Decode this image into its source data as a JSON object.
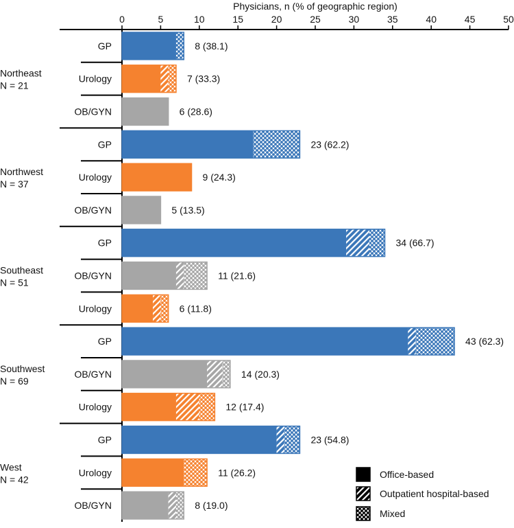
{
  "chart_data": {
    "type": "bar",
    "orientation": "horizontal-stacked",
    "title": "Physicians, n (% of geographic region)",
    "xlim": [
      0,
      50
    ],
    "xticks": [
      0,
      5,
      10,
      15,
      20,
      25,
      30,
      35,
      40,
      45,
      50
    ],
    "segments": [
      "Office-based",
      "Outpatient hospital-based",
      "Mixed"
    ],
    "colors": {
      "GP": "#3b77b9",
      "Urology": "#f5822f",
      "OB/GYN": "#a6a6a6",
      "legend": "#000000"
    },
    "groups": [
      {
        "name": "Northeast",
        "n_label": "N = 21",
        "bars": [
          {
            "category": "GP",
            "values": [
              7,
              0,
              1
            ],
            "label": "8 (38.1)"
          },
          {
            "category": "Urology",
            "values": [
              5,
              1,
              1
            ],
            "label": "7 (33.3)"
          },
          {
            "category": "OB/GYN",
            "values": [
              6,
              0,
              0
            ],
            "label": "6 (28.6)"
          }
        ]
      },
      {
        "name": "Northwest",
        "n_label": "N = 37",
        "bars": [
          {
            "category": "GP",
            "values": [
              17,
              0,
              6
            ],
            "label": "23 (62.2)"
          },
          {
            "category": "Urology",
            "values": [
              9,
              0,
              0
            ],
            "label": "9 (24.3)"
          },
          {
            "category": "OB/GYN",
            "values": [
              5,
              0,
              0
            ],
            "label": "5 (13.5)"
          }
        ]
      },
      {
        "name": "Southeast",
        "n_label": "N = 51",
        "bars": [
          {
            "category": "GP",
            "values": [
              29,
              3,
              2
            ],
            "label": "34 (66.7)"
          },
          {
            "category": "OB/GYN",
            "values": [
              7,
              1,
              3
            ],
            "label": "11 (21.6)"
          },
          {
            "category": "Urology",
            "values": [
              4,
              1,
              1
            ],
            "label": "6 (11.8)"
          }
        ]
      },
      {
        "name": "Southwest",
        "n_label": "N = 69",
        "bars": [
          {
            "category": "GP",
            "values": [
              37,
              1,
              5
            ],
            "label": "43 (62.3)"
          },
          {
            "category": "OB/GYN",
            "values": [
              11,
              2,
              1
            ],
            "label": "14 (20.3)"
          },
          {
            "category": "Urology",
            "values": [
              7,
              3,
              2
            ],
            "label": "12 (17.4)"
          }
        ]
      },
      {
        "name": "West",
        "n_label": "N = 42",
        "bars": [
          {
            "category": "GP",
            "values": [
              20,
              1,
              2
            ],
            "label": "23 (54.8)"
          },
          {
            "category": "Urology",
            "values": [
              8,
              0,
              3
            ],
            "label": "11 (26.2)"
          },
          {
            "category": "OB/GYN",
            "values": [
              6,
              1,
              1
            ],
            "label": "8 (19.0)"
          }
        ]
      }
    ]
  }
}
